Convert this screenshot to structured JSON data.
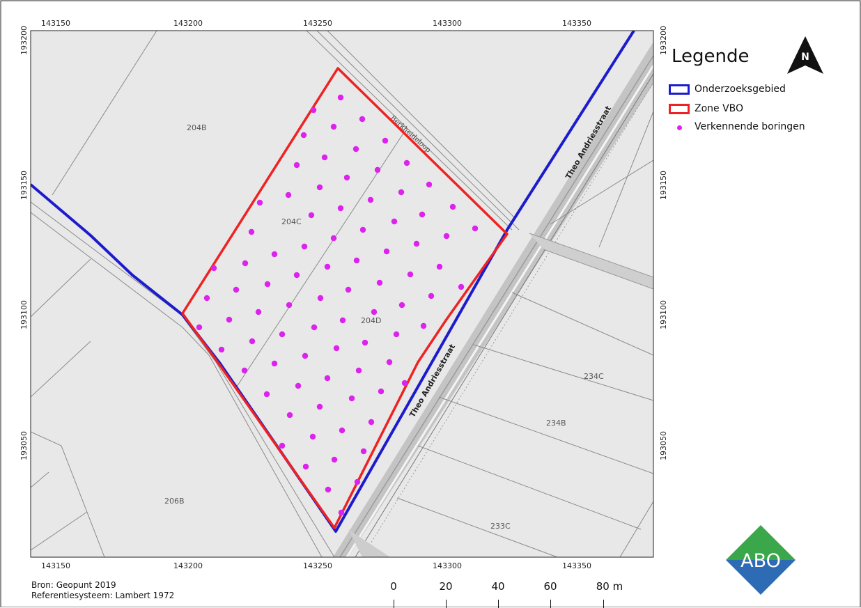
{
  "map": {
    "coords": {
      "x_ticks": [
        "143150",
        "143200",
        "143250",
        "143300",
        "143350"
      ],
      "y_ticks": [
        "193200",
        "193150",
        "193100",
        "193050"
      ]
    },
    "parcels": [
      "204B",
      "204C",
      "204D",
      "206B",
      "234C",
      "234B",
      "233C"
    ],
    "street_minor": "Berkheideloop",
    "street_main": "Theo Andriesstraat"
  },
  "legend": {
    "title": "Legende",
    "items": [
      {
        "label": "Onderzoeksgebied",
        "color": "#1c1ccc",
        "kind": "box"
      },
      {
        "label": "Zone VBO",
        "color": "#ee2222",
        "kind": "box"
      },
      {
        "label": "Verkennende boringen",
        "color": "#dd22ee",
        "kind": "dot"
      }
    ]
  },
  "north_arrow": {
    "letter": "N"
  },
  "footer": {
    "source": "Bron: Geopunt 2019",
    "crs": "Referentiesysteem: Lambert 1972"
  },
  "scalebar": {
    "labels": [
      "0",
      "20",
      "40",
      "60",
      "80 m"
    ]
  },
  "logo": {
    "text": "ABO",
    "colors": {
      "top": "#3aa84a",
      "bottom": "#2e6bb5"
    }
  },
  "colors": {
    "map_bg": "#e8e8e8",
    "parcel_line": "#8a8a8a",
    "road": "#c2c2c2",
    "boring": "#dd22ee"
  }
}
